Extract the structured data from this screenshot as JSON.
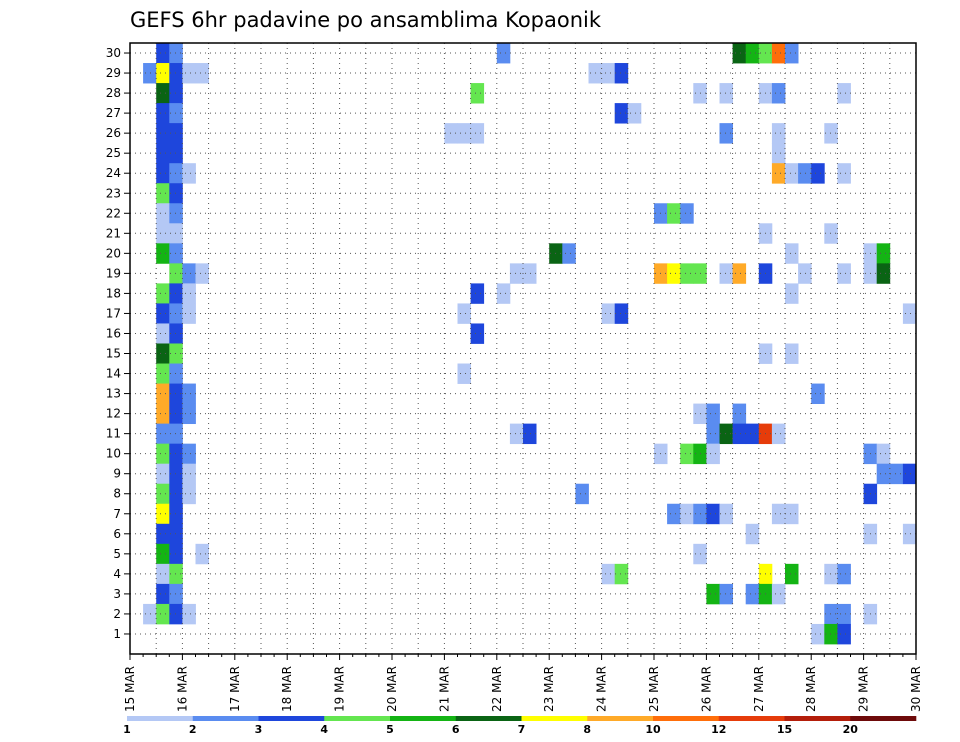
{
  "chart_data": {
    "type": "heatmap",
    "title": "GEFS 6hr padavine po ansamblima Kopaonik",
    "xlabel": "",
    "ylabel": "",
    "x_tick_labels": [
      "15 MAR",
      "16 MAR",
      "17 MAR",
      "18 MAR",
      "19 MAR",
      "20 MAR",
      "21 MAR",
      "22 MAR",
      "23 MAR",
      "24 MAR",
      "25 MAR",
      "26 MAR",
      "27 MAR",
      "28 MAR",
      "29 MAR",
      "30 MAR"
    ],
    "x_unit": "6-hour step (4 steps per day, starting 15 MAR 00Z)",
    "y_members": [
      1,
      2,
      3,
      4,
      5,
      6,
      7,
      8,
      9,
      10,
      11,
      12,
      13,
      14,
      15,
      16,
      17,
      18,
      19,
      20,
      21,
      22,
      23,
      24,
      25,
      26,
      27,
      28,
      29,
      30
    ],
    "grid": "dotted",
    "legend": {
      "placement": "bottom",
      "boundaries": [
        "1",
        "2",
        "3",
        "4",
        "5",
        "6",
        "7",
        "8",
        "10",
        "12",
        "15",
        "20"
      ],
      "colors": [
        "#b4c8f5",
        "#5a8cf0",
        "#1e46dc",
        "#64e650",
        "#14b414",
        "#0a6414",
        "#ffff00",
        "#ffaa28",
        "#ff6e0a",
        "#e63c0a",
        "#b41e0a",
        "#6e0a0a"
      ]
    },
    "cells": [
      [
        30,
        2,
        3
      ],
      [
        30,
        3,
        2
      ],
      [
        30,
        28,
        2
      ],
      [
        30,
        46,
        6
      ],
      [
        30,
        47,
        5
      ],
      [
        30,
        48,
        4
      ],
      [
        30,
        49,
        9
      ],
      [
        30,
        50,
        2
      ],
      [
        29,
        1,
        2
      ],
      [
        29,
        2,
        7
      ],
      [
        29,
        3,
        3
      ],
      [
        29,
        4,
        1
      ],
      [
        29,
        5,
        1
      ],
      [
        29,
        35,
        1
      ],
      [
        29,
        36,
        1
      ],
      [
        29,
        37,
        3
      ],
      [
        28,
        2,
        6
      ],
      [
        28,
        3,
        3
      ],
      [
        28,
        26,
        4
      ],
      [
        28,
        43,
        1
      ],
      [
        28,
        45,
        1
      ],
      [
        28,
        48,
        1
      ],
      [
        28,
        49,
        2
      ],
      [
        28,
        54,
        1
      ],
      [
        27,
        2,
        3
      ],
      [
        27,
        3,
        2
      ],
      [
        27,
        37,
        3
      ],
      [
        27,
        38,
        1
      ],
      [
        26,
        2,
        3
      ],
      [
        26,
        3,
        3
      ],
      [
        26,
        24,
        1
      ],
      [
        26,
        25,
        1
      ],
      [
        26,
        26,
        1
      ],
      [
        26,
        45,
        2
      ],
      [
        26,
        49,
        1
      ],
      [
        26,
        53,
        1
      ],
      [
        25,
        2,
        3
      ],
      [
        25,
        3,
        3
      ],
      [
        25,
        49,
        1
      ],
      [
        24,
        2,
        3
      ],
      [
        24,
        3,
        2
      ],
      [
        24,
        4,
        1
      ],
      [
        24,
        49,
        8
      ],
      [
        24,
        50,
        1
      ],
      [
        24,
        51,
        2
      ],
      [
        24,
        52,
        3
      ],
      [
        24,
        54,
        1
      ],
      [
        23,
        2,
        4
      ],
      [
        23,
        3,
        3
      ],
      [
        22,
        2,
        1
      ],
      [
        22,
        3,
        2
      ],
      [
        22,
        40,
        2
      ],
      [
        22,
        41,
        4
      ],
      [
        22,
        42,
        2
      ],
      [
        21,
        2,
        1
      ],
      [
        21,
        3,
        1
      ],
      [
        21,
        48,
        1
      ],
      [
        21,
        53,
        1
      ],
      [
        20,
        2,
        5
      ],
      [
        20,
        3,
        2
      ],
      [
        20,
        32,
        6
      ],
      [
        20,
        33,
        2
      ],
      [
        20,
        50,
        1
      ],
      [
        20,
        56,
        1
      ],
      [
        20,
        57,
        5
      ],
      [
        19,
        3,
        4
      ],
      [
        19,
        4,
        2
      ],
      [
        19,
        5,
        1
      ],
      [
        19,
        29,
        1
      ],
      [
        19,
        30,
        1
      ],
      [
        19,
        40,
        8
      ],
      [
        19,
        41,
        7
      ],
      [
        19,
        42,
        4
      ],
      [
        19,
        43,
        4
      ],
      [
        19,
        45,
        1
      ],
      [
        19,
        46,
        8
      ],
      [
        19,
        48,
        3
      ],
      [
        19,
        51,
        1
      ],
      [
        19,
        54,
        1
      ],
      [
        19,
        56,
        1
      ],
      [
        19,
        57,
        6
      ],
      [
        18,
        2,
        4
      ],
      [
        18,
        3,
        3
      ],
      [
        18,
        4,
        1
      ],
      [
        18,
        26,
        3
      ],
      [
        18,
        28,
        1
      ],
      [
        18,
        50,
        1
      ],
      [
        17,
        2,
        3
      ],
      [
        17,
        3,
        2
      ],
      [
        17,
        4,
        1
      ],
      [
        17,
        25,
        1
      ],
      [
        17,
        36,
        1
      ],
      [
        17,
        37,
        3
      ],
      [
        17,
        59,
        1
      ],
      [
        16,
        2,
        1
      ],
      [
        16,
        3,
        3
      ],
      [
        16,
        26,
        3
      ],
      [
        15,
        2,
        6
      ],
      [
        15,
        3,
        4
      ],
      [
        15,
        48,
        1
      ],
      [
        15,
        50,
        1
      ],
      [
        14,
        2,
        4
      ],
      [
        14,
        3,
        2
      ],
      [
        14,
        25,
        1
      ],
      [
        13,
        2,
        8
      ],
      [
        13,
        3,
        3
      ],
      [
        13,
        4,
        2
      ],
      [
        13,
        52,
        2
      ],
      [
        12,
        2,
        8
      ],
      [
        12,
        3,
        3
      ],
      [
        12,
        4,
        2
      ],
      [
        12,
        43,
        1
      ],
      [
        12,
        44,
        2
      ],
      [
        12,
        46,
        2
      ],
      [
        11,
        2,
        2
      ],
      [
        11,
        3,
        2
      ],
      [
        11,
        29,
        1
      ],
      [
        11,
        30,
        3
      ],
      [
        11,
        44,
        2
      ],
      [
        11,
        45,
        6
      ],
      [
        11,
        46,
        3
      ],
      [
        11,
        47,
        3
      ],
      [
        11,
        48,
        10
      ],
      [
        11,
        49,
        1
      ],
      [
        10,
        2,
        4
      ],
      [
        10,
        3,
        3
      ],
      [
        10,
        4,
        2
      ],
      [
        10,
        40,
        1
      ],
      [
        10,
        42,
        4
      ],
      [
        10,
        43,
        5
      ],
      [
        10,
        44,
        1
      ],
      [
        10,
        56,
        2
      ],
      [
        10,
        57,
        1
      ],
      [
        9,
        2,
        1
      ],
      [
        9,
        3,
        3
      ],
      [
        9,
        4,
        1
      ],
      [
        9,
        57,
        2
      ],
      [
        9,
        58,
        2
      ],
      [
        9,
        59,
        3
      ],
      [
        8,
        2,
        4
      ],
      [
        8,
        3,
        3
      ],
      [
        8,
        4,
        1
      ],
      [
        8,
        34,
        2
      ],
      [
        8,
        56,
        3
      ],
      [
        7,
        2,
        7
      ],
      [
        7,
        3,
        3
      ],
      [
        7,
        41,
        2
      ],
      [
        7,
        42,
        1
      ],
      [
        7,
        43,
        2
      ],
      [
        7,
        44,
        3
      ],
      [
        7,
        45,
        1
      ],
      [
        7,
        49,
        1
      ],
      [
        7,
        50,
        1
      ],
      [
        6,
        2,
        3
      ],
      [
        6,
        3,
        3
      ],
      [
        6,
        47,
        1
      ],
      [
        6,
        56,
        1
      ],
      [
        6,
        59,
        1
      ],
      [
        5,
        2,
        5
      ],
      [
        5,
        3,
        3
      ],
      [
        5,
        5,
        1
      ],
      [
        5,
        43,
        1
      ],
      [
        4,
        2,
        1
      ],
      [
        4,
        3,
        4
      ],
      [
        4,
        36,
        1
      ],
      [
        4,
        37,
        4
      ],
      [
        4,
        48,
        7
      ],
      [
        4,
        50,
        5
      ],
      [
        4,
        53,
        1
      ],
      [
        4,
        54,
        2
      ],
      [
        3,
        2,
        3
      ],
      [
        3,
        3,
        2
      ],
      [
        3,
        44,
        5
      ],
      [
        3,
        45,
        2
      ],
      [
        3,
        47,
        2
      ],
      [
        3,
        48,
        5
      ],
      [
        3,
        49,
        1
      ],
      [
        2,
        1,
        1
      ],
      [
        2,
        2,
        4
      ],
      [
        2,
        3,
        3
      ],
      [
        2,
        4,
        1
      ],
      [
        2,
        53,
        2
      ],
      [
        2,
        54,
        2
      ],
      [
        2,
        56,
        1
      ],
      [
        1,
        52,
        1
      ],
      [
        1,
        53,
        5
      ],
      [
        1,
        54,
        3
      ]
    ]
  }
}
